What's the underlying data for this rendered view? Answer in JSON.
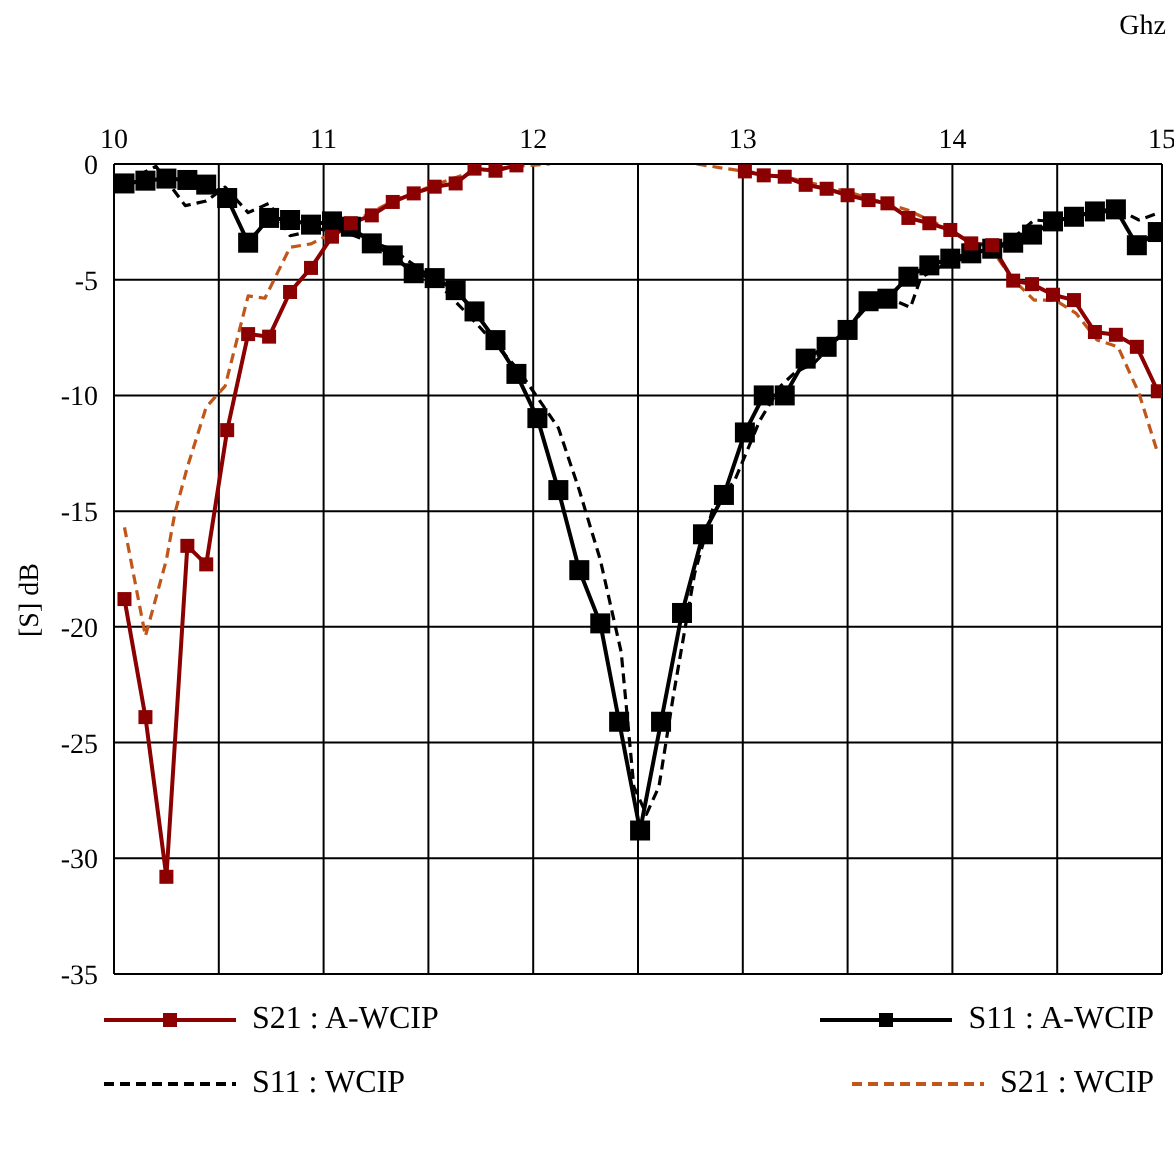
{
  "chart_data": {
    "type": "line",
    "xlabel": "Ghz",
    "ylabel": "[S] dB",
    "x": [
      10.05,
      10.15,
      10.25,
      10.35,
      10.44,
      10.54,
      10.64,
      10.74,
      10.84,
      10.94,
      11.04,
      11.13,
      11.23,
      11.33,
      11.43,
      11.53,
      11.63,
      11.72,
      11.82,
      11.92,
      12.02,
      12.12,
      12.22,
      12.32,
      12.41,
      12.51,
      12.61,
      12.71,
      12.81,
      12.91,
      13.01,
      13.1,
      13.2,
      13.3,
      13.4,
      13.5,
      13.6,
      13.69,
      13.79,
      13.89,
      13.99,
      14.09,
      14.19,
      14.29,
      14.38,
      14.48,
      14.58,
      14.68,
      14.78,
      14.88,
      14.98
    ],
    "xlim": [
      10,
      15
    ],
    "xticks": [
      10,
      {
        "value": 10.5,
        "label": null
      },
      11,
      {
        "value": 11.5,
        "label": null
      },
      12,
      {
        "value": 12.5,
        "label": null
      },
      13,
      {
        "value": 13.5,
        "label": null
      },
      14,
      {
        "value": 14.5,
        "label": null
      },
      15
    ],
    "ylim": [
      -35,
      0
    ],
    "yticks": [
      -35,
      -30,
      -25,
      -20,
      -15,
      -10,
      -5,
      0
    ],
    "grid": true,
    "legend": "bottom",
    "series": [
      {
        "name": "S21 : A-WCIP",
        "color": "#8b0000",
        "marker": "square",
        "line_style": "solid",
        "values": [
          -18.8,
          -23.9,
          -30.8,
          -16.5,
          -17.3,
          -11.5,
          -7.35,
          -7.46,
          -5.53,
          -4.49,
          -3.14,
          -2.56,
          -2.22,
          -1.64,
          -1.27,
          -0.98,
          -0.84,
          -0.2,
          -0.29,
          -0.06,
          null,
          null,
          null,
          null,
          null,
          null,
          null,
          null,
          null,
          null,
          -0.32,
          -0.49,
          -0.55,
          -0.9,
          -1.07,
          -1.35,
          -1.56,
          -1.7,
          -2.33,
          -2.56,
          -2.85,
          -3.43,
          -3.51,
          -5.04,
          -5.19,
          -5.65,
          -5.88,
          -7.26,
          -7.38,
          -7.9,
          -9.82
        ]
      },
      {
        "name": "S11 : A-WCIP",
        "color": "#000000",
        "marker": "square",
        "line_style": "solid",
        "values": [
          -0.84,
          -0.72,
          -0.63,
          -0.69,
          -0.89,
          -1.47,
          -3.4,
          -2.33,
          -2.42,
          -2.62,
          -2.48,
          -2.71,
          -3.43,
          -3.95,
          -4.72,
          -4.93,
          -5.45,
          -6.37,
          -7.61,
          -9.07,
          -10.98,
          -14.09,
          -17.55,
          -19.85,
          -24.1,
          -28.8,
          -24.1,
          -19.4,
          -16.0,
          -14.3,
          -11.6,
          -10.0,
          -10.0,
          -8.41,
          -7.9,
          -7.17,
          -5.93,
          -5.82,
          -4.87,
          -4.38,
          -4.09,
          -3.86,
          -3.66,
          -3.4,
          -3.05,
          -2.48,
          -2.28,
          -2.05,
          -1.96,
          -3.51,
          -2.94
        ]
      },
      {
        "name": "S11 : WCIP",
        "color": "#000000",
        "marker": "none",
        "line_style": "dashed",
        "x": [
          10.05,
          10.2,
          10.34,
          10.44,
          10.53,
          10.64,
          10.74,
          10.84,
          10.94,
          11.04,
          11.33,
          11.53,
          11.73,
          11.93,
          12.12,
          12.22,
          12.32,
          12.42,
          12.48,
          12.54,
          12.6,
          12.67,
          12.77,
          12.86,
          12.96,
          13.08,
          13.18,
          13.25,
          13.34,
          13.49,
          13.59,
          13.7,
          13.8,
          13.85,
          13.95,
          14.2,
          14.29,
          14.39,
          14.48,
          14.79,
          14.89,
          14.98
        ],
        "values": [
          -0.8,
          -0.1,
          -1.8,
          -1.6,
          -1.0,
          -2.1,
          -1.7,
          -3.1,
          -2.9,
          -2.75,
          -3.7,
          -5.0,
          -6.9,
          -8.9,
          -11.4,
          -14.1,
          -17.1,
          -21.1,
          -26.9,
          -28.1,
          -26.9,
          -22.9,
          -17.7,
          -14.8,
          -13.7,
          -11.1,
          -9.6,
          -9.0,
          -8.6,
          -7.2,
          -6.2,
          -5.8,
          -6.2,
          -4.9,
          -4.4,
          -3.66,
          -3.2,
          -2.42,
          -2.48,
          -1.96,
          -2.42,
          -2.13
        ]
      },
      {
        "name": "S21 : WCIP",
        "color": "#c0561a",
        "marker": "none",
        "line_style": "dashed",
        "x": [
          10.05,
          10.15,
          10.25,
          10.29,
          10.35,
          10.44,
          10.53,
          10.64,
          10.72,
          10.84,
          10.94,
          11.04,
          11.13,
          11.33,
          11.53,
          11.72,
          11.92,
          12.08,
          12.4,
          12.78,
          12.92,
          13.2,
          13.5,
          13.79,
          13.99,
          14.1,
          14.2,
          14.29,
          14.39,
          14.49,
          14.59,
          14.69,
          14.79,
          14.89,
          14.98
        ],
        "values": [
          -15.7,
          -20.4,
          -17.1,
          -15.1,
          -13.1,
          -10.5,
          -9.6,
          -5.7,
          -5.8,
          -3.6,
          -3.45,
          -3.0,
          -2.56,
          -1.6,
          -0.9,
          -0.3,
          -0.1,
          0,
          null,
          0,
          -0.2,
          -0.55,
          -1.2,
          -2.0,
          -2.85,
          -3.5,
          -3.86,
          -5.0,
          -5.88,
          -5.88,
          -6.45,
          -7.6,
          -7.9,
          -9.9,
          -12.5
        ]
      }
    ]
  }
}
